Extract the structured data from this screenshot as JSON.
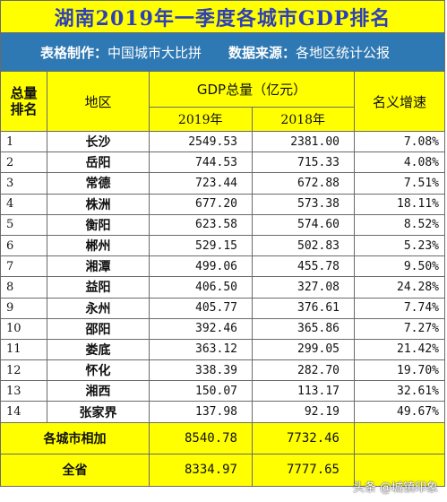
{
  "title": "湖南2019年一季度各城市GDP排名",
  "subtitle": {
    "maker_label": "表格制作：",
    "maker": "中国城市大比拼",
    "source_label": "数据来源：",
    "source": "各地区统计公报"
  },
  "header": {
    "rank": [
      "总量",
      "排名"
    ],
    "area": "地区",
    "gdp": "GDP总量（亿元）",
    "y2019": "2019年",
    "y2018": "2018年",
    "growth": "名义增速"
  },
  "rows": [
    {
      "rank": "1",
      "city": "长沙",
      "v2019": "2549.53",
      "v2018": "2381.00",
      "growth": "7.08%"
    },
    {
      "rank": "2",
      "city": "岳阳",
      "v2019": "744.53",
      "v2018": "715.33",
      "growth": "4.08%"
    },
    {
      "rank": "3",
      "city": "常德",
      "v2019": "723.44",
      "v2018": "672.88",
      "growth": "7.51%"
    },
    {
      "rank": "4",
      "city": "株洲",
      "v2019": "677.20",
      "v2018": "573.38",
      "growth": "18.11%"
    },
    {
      "rank": "5",
      "city": "衡阳",
      "v2019": "623.58",
      "v2018": "574.60",
      "growth": "8.52%"
    },
    {
      "rank": "6",
      "city": "郴州",
      "v2019": "529.15",
      "v2018": "502.83",
      "growth": "5.23%"
    },
    {
      "rank": "7",
      "city": "湘潭",
      "v2019": "499.06",
      "v2018": "455.78",
      "growth": "9.50%"
    },
    {
      "rank": "8",
      "city": "益阳",
      "v2019": "406.50",
      "v2018": "327.08",
      "growth": "24.28%"
    },
    {
      "rank": "9",
      "city": "永州",
      "v2019": "405.77",
      "v2018": "376.61",
      "growth": "7.74%"
    },
    {
      "rank": "10",
      "city": "邵阳",
      "v2019": "392.46",
      "v2018": "365.86",
      "growth": "7.27%"
    },
    {
      "rank": "11",
      "city": "娄底",
      "v2019": "363.12",
      "v2018": "299.05",
      "growth": "21.42%"
    },
    {
      "rank": "12",
      "city": "怀化",
      "v2019": "338.39",
      "v2018": "282.70",
      "growth": "19.70%"
    },
    {
      "rank": "13",
      "city": "湘西",
      "v2019": "150.07",
      "v2018": "113.17",
      "growth": "32.61%"
    },
    {
      "rank": "14",
      "city": "张家界",
      "v2019": "137.98",
      "v2018": "92.19",
      "growth": "49.67%"
    }
  ],
  "totals": [
    {
      "label": "各城市相加",
      "v2019": "8540.78",
      "v2018": "7732.46",
      "growth": ""
    },
    {
      "label": "全省",
      "v2019": "8334.97",
      "v2018": "7777.65",
      "growth": ""
    }
  ],
  "watermark": "头条 @城镇印象"
}
